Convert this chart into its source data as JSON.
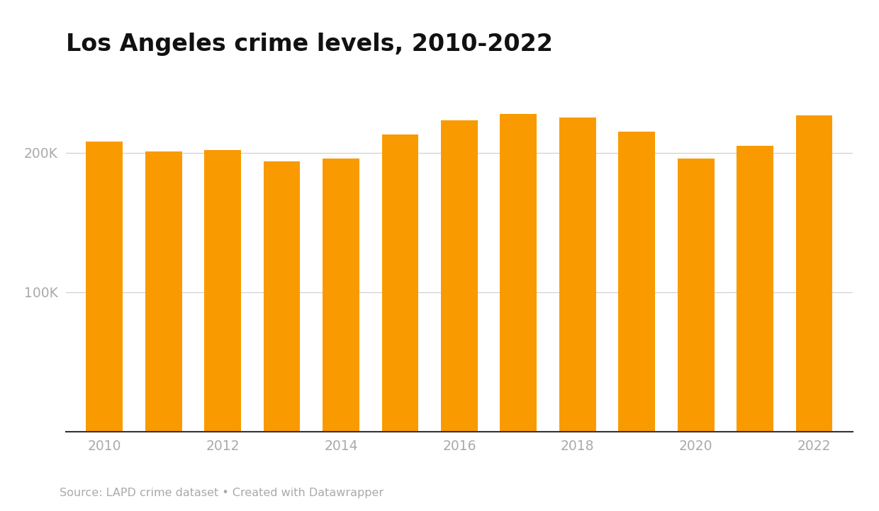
{
  "years": [
    2010,
    2011,
    2012,
    2013,
    2014,
    2015,
    2016,
    2017,
    2018,
    2019,
    2020,
    2021,
    2022
  ],
  "values": [
    208000,
    201000,
    202000,
    194000,
    196000,
    213000,
    223000,
    228000,
    225000,
    215000,
    196000,
    205000,
    227000
  ],
  "bar_color": "#F99A00",
  "title": "Los Angeles crime levels, 2010-2022",
  "title_fontsize": 24,
  "title_fontweight": "bold",
  "ylabel_ticks": [
    0,
    100000,
    200000
  ],
  "ylabel_labels": [
    "",
    "100K",
    "200K"
  ],
  "source_text": "Source: LAPD crime dataset • Created with Datawrapper",
  "source_fontsize": 11.5,
  "background_color": "#ffffff",
  "grid_color": "#cccccc",
  "tick_color": "#aaaaaa",
  "bar_width": 0.62,
  "ylim": [
    0,
    260000
  ]
}
